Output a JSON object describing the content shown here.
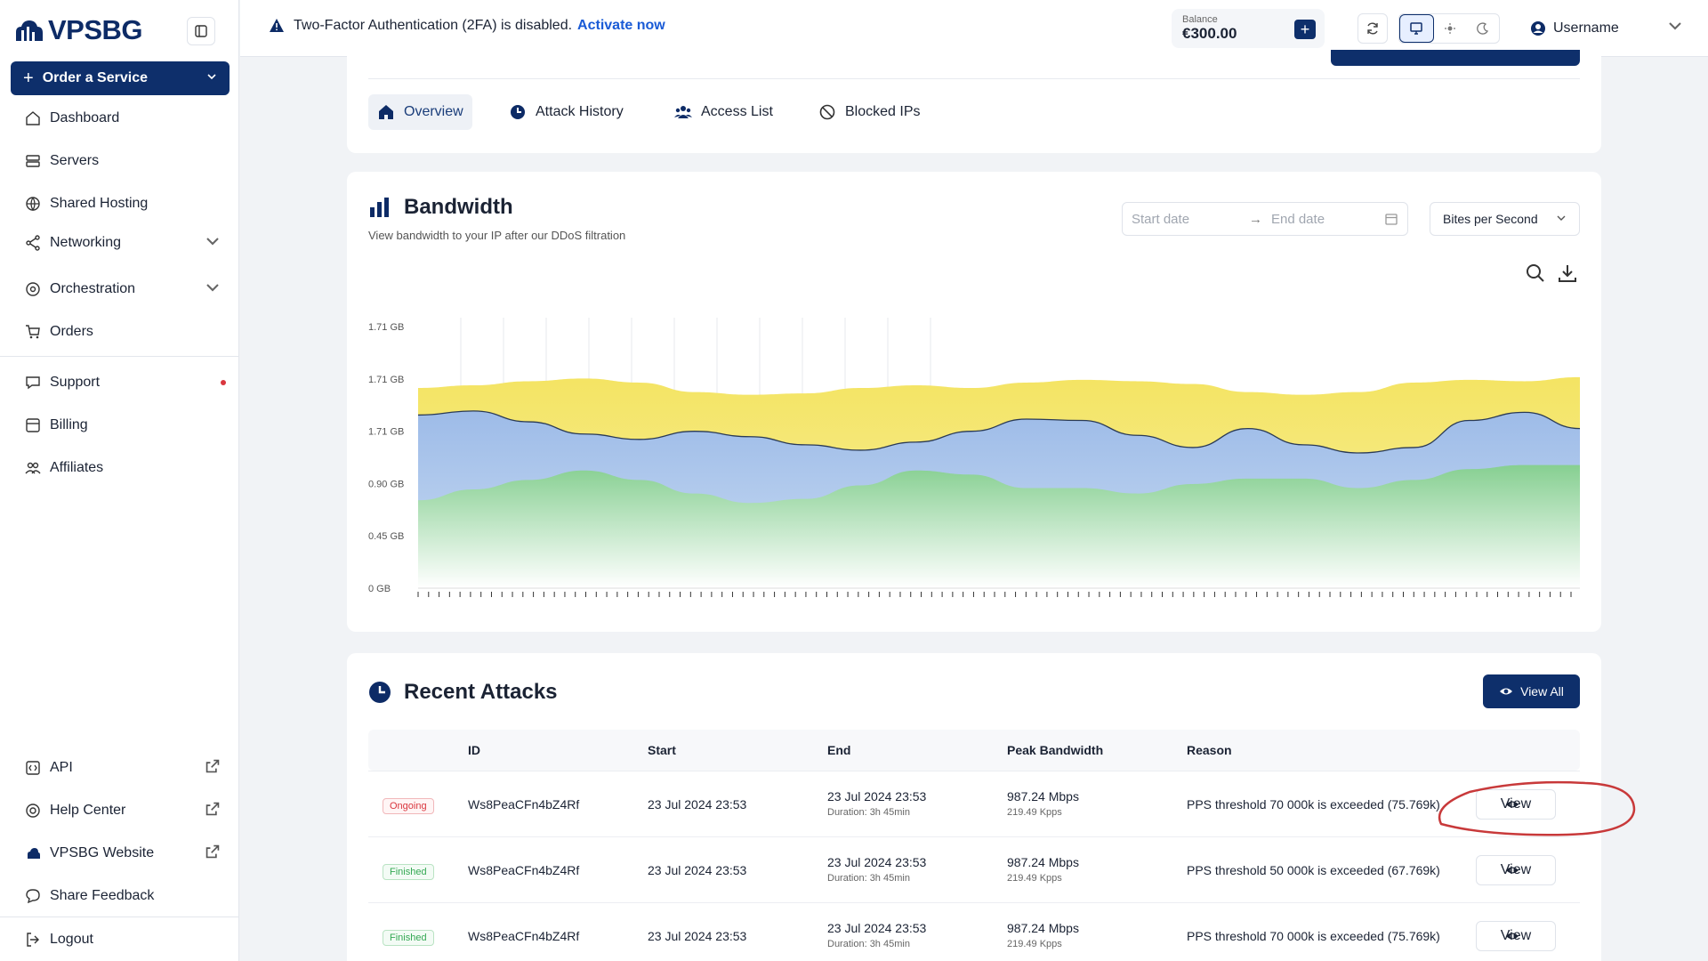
{
  "brand": {
    "name": "VPSBG"
  },
  "sidebar": {
    "order_label": "Order a Service",
    "items": [
      {
        "label": "Dashboard",
        "icon": "home-icon"
      },
      {
        "label": "Servers",
        "icon": "server-icon"
      },
      {
        "label": "Shared Hosting",
        "icon": "globe-icon"
      },
      {
        "label": "Networking",
        "icon": "share-icon"
      },
      {
        "label": "Orchestration",
        "icon": "orchestration-icon"
      },
      {
        "label": "Orders",
        "icon": "cart-icon"
      },
      {
        "label": "Support",
        "icon": "chat-icon"
      },
      {
        "label": "Billing",
        "icon": "billing-icon"
      },
      {
        "label": "Affiliates",
        "icon": "users-icon"
      }
    ],
    "bottom_items": [
      {
        "label": "API",
        "icon": "api-icon"
      },
      {
        "label": "Help Center",
        "icon": "help-icon"
      },
      {
        "label": "VPSBG Website",
        "icon": "cloud-icon"
      },
      {
        "label": "Share Feedback",
        "icon": "message-icon"
      },
      {
        "label": "Logout",
        "icon": "logout-icon"
      }
    ]
  },
  "topbar": {
    "alert_text": "Two-Factor Authentication (2FA) is disabled.",
    "alert_link": "Activate now",
    "balance_label": "Balance",
    "balance_value": "€300.00",
    "username": "Username"
  },
  "tabs": [
    "Overview",
    "Attack History",
    "Access List",
    "Blocked IPs"
  ],
  "bandwidth": {
    "title": "Bandwidth",
    "subtitle": "View bandwidth to your IP after our DDoS filtration",
    "start_placeholder": "Start date",
    "end_placeholder": "End date",
    "units": "Bites per Second"
  },
  "chart_data": {
    "type": "area",
    "y_ticks": [
      "0 GB",
      "0.45 GB",
      "0.90 GB",
      "1.71 GB",
      "1.71 GB",
      "1.71 GB"
    ],
    "series": [
      {
        "color": "#f6e86a",
        "values": [
          1.48,
          1.5,
          1.53,
          1.55,
          1.52,
          1.45,
          1.43,
          1.44,
          1.48,
          1.5,
          1.48,
          1.52,
          1.54,
          1.53,
          1.51,
          1.45,
          1.43,
          1.45,
          1.52,
          1.54,
          1.53,
          1.56
        ]
      },
      {
        "color": "#a9c4ea",
        "values": [
          1.28,
          1.31,
          1.23,
          1.14,
          1.1,
          1.16,
          1.12,
          1.06,
          1.02,
          1.08,
          1.16,
          1.25,
          1.24,
          1.13,
          1.04,
          1.18,
          1.06,
          1.0,
          1.04,
          1.24,
          1.3,
          1.18
        ]
      },
      {
        "color": "#8fd39a",
        "values": [
          0.65,
          0.73,
          0.8,
          0.87,
          0.8,
          0.7,
          0.63,
          0.66,
          0.76,
          0.87,
          0.84,
          0.74,
          0.74,
          0.7,
          0.77,
          0.81,
          0.81,
          0.74,
          0.8,
          0.88,
          0.91,
          0.91
        ]
      }
    ]
  },
  "attacks": {
    "title": "Recent Attacks",
    "view_all": "View All",
    "columns": [
      "ID",
      "Start",
      "End",
      "Peak Bandwidth",
      "Reason"
    ],
    "rows": [
      {
        "status": "Ongoing",
        "id": "Ws8PeaCFn4bZ4Rf",
        "start": "23 Jul 2024  23:53",
        "end": "23 Jul 2024  23:53",
        "duration": "Duration: 3h 45min",
        "peak": "987.24 Mbps",
        "kpps": "219.49 Kpps",
        "reason": "PPS threshold 70 000k is exceeded (75.769k)",
        "action": "View"
      },
      {
        "status": "Finished",
        "id": "Ws8PeaCFn4bZ4Rf",
        "start": "23 Jul 2024  23:53",
        "end": "23 Jul 2024  23:53",
        "duration": "Duration: 3h 45min",
        "peak": "987.24 Mbps",
        "kpps": "219.49 Kpps",
        "reason": "PPS threshold 50 000k is exceeded (67.769k)",
        "action": "View"
      },
      {
        "status": "Finished",
        "id": "Ws8PeaCFn4bZ4Rf",
        "start": "23 Jul 2024  23:53",
        "end": "23 Jul 2024  23:53",
        "duration": "Duration: 3h 45min",
        "peak": "987.24 Mbps",
        "kpps": "219.49 Kpps",
        "reason": "PPS threshold 70 000k is exceeded (75.769k)",
        "action": "View"
      }
    ]
  }
}
